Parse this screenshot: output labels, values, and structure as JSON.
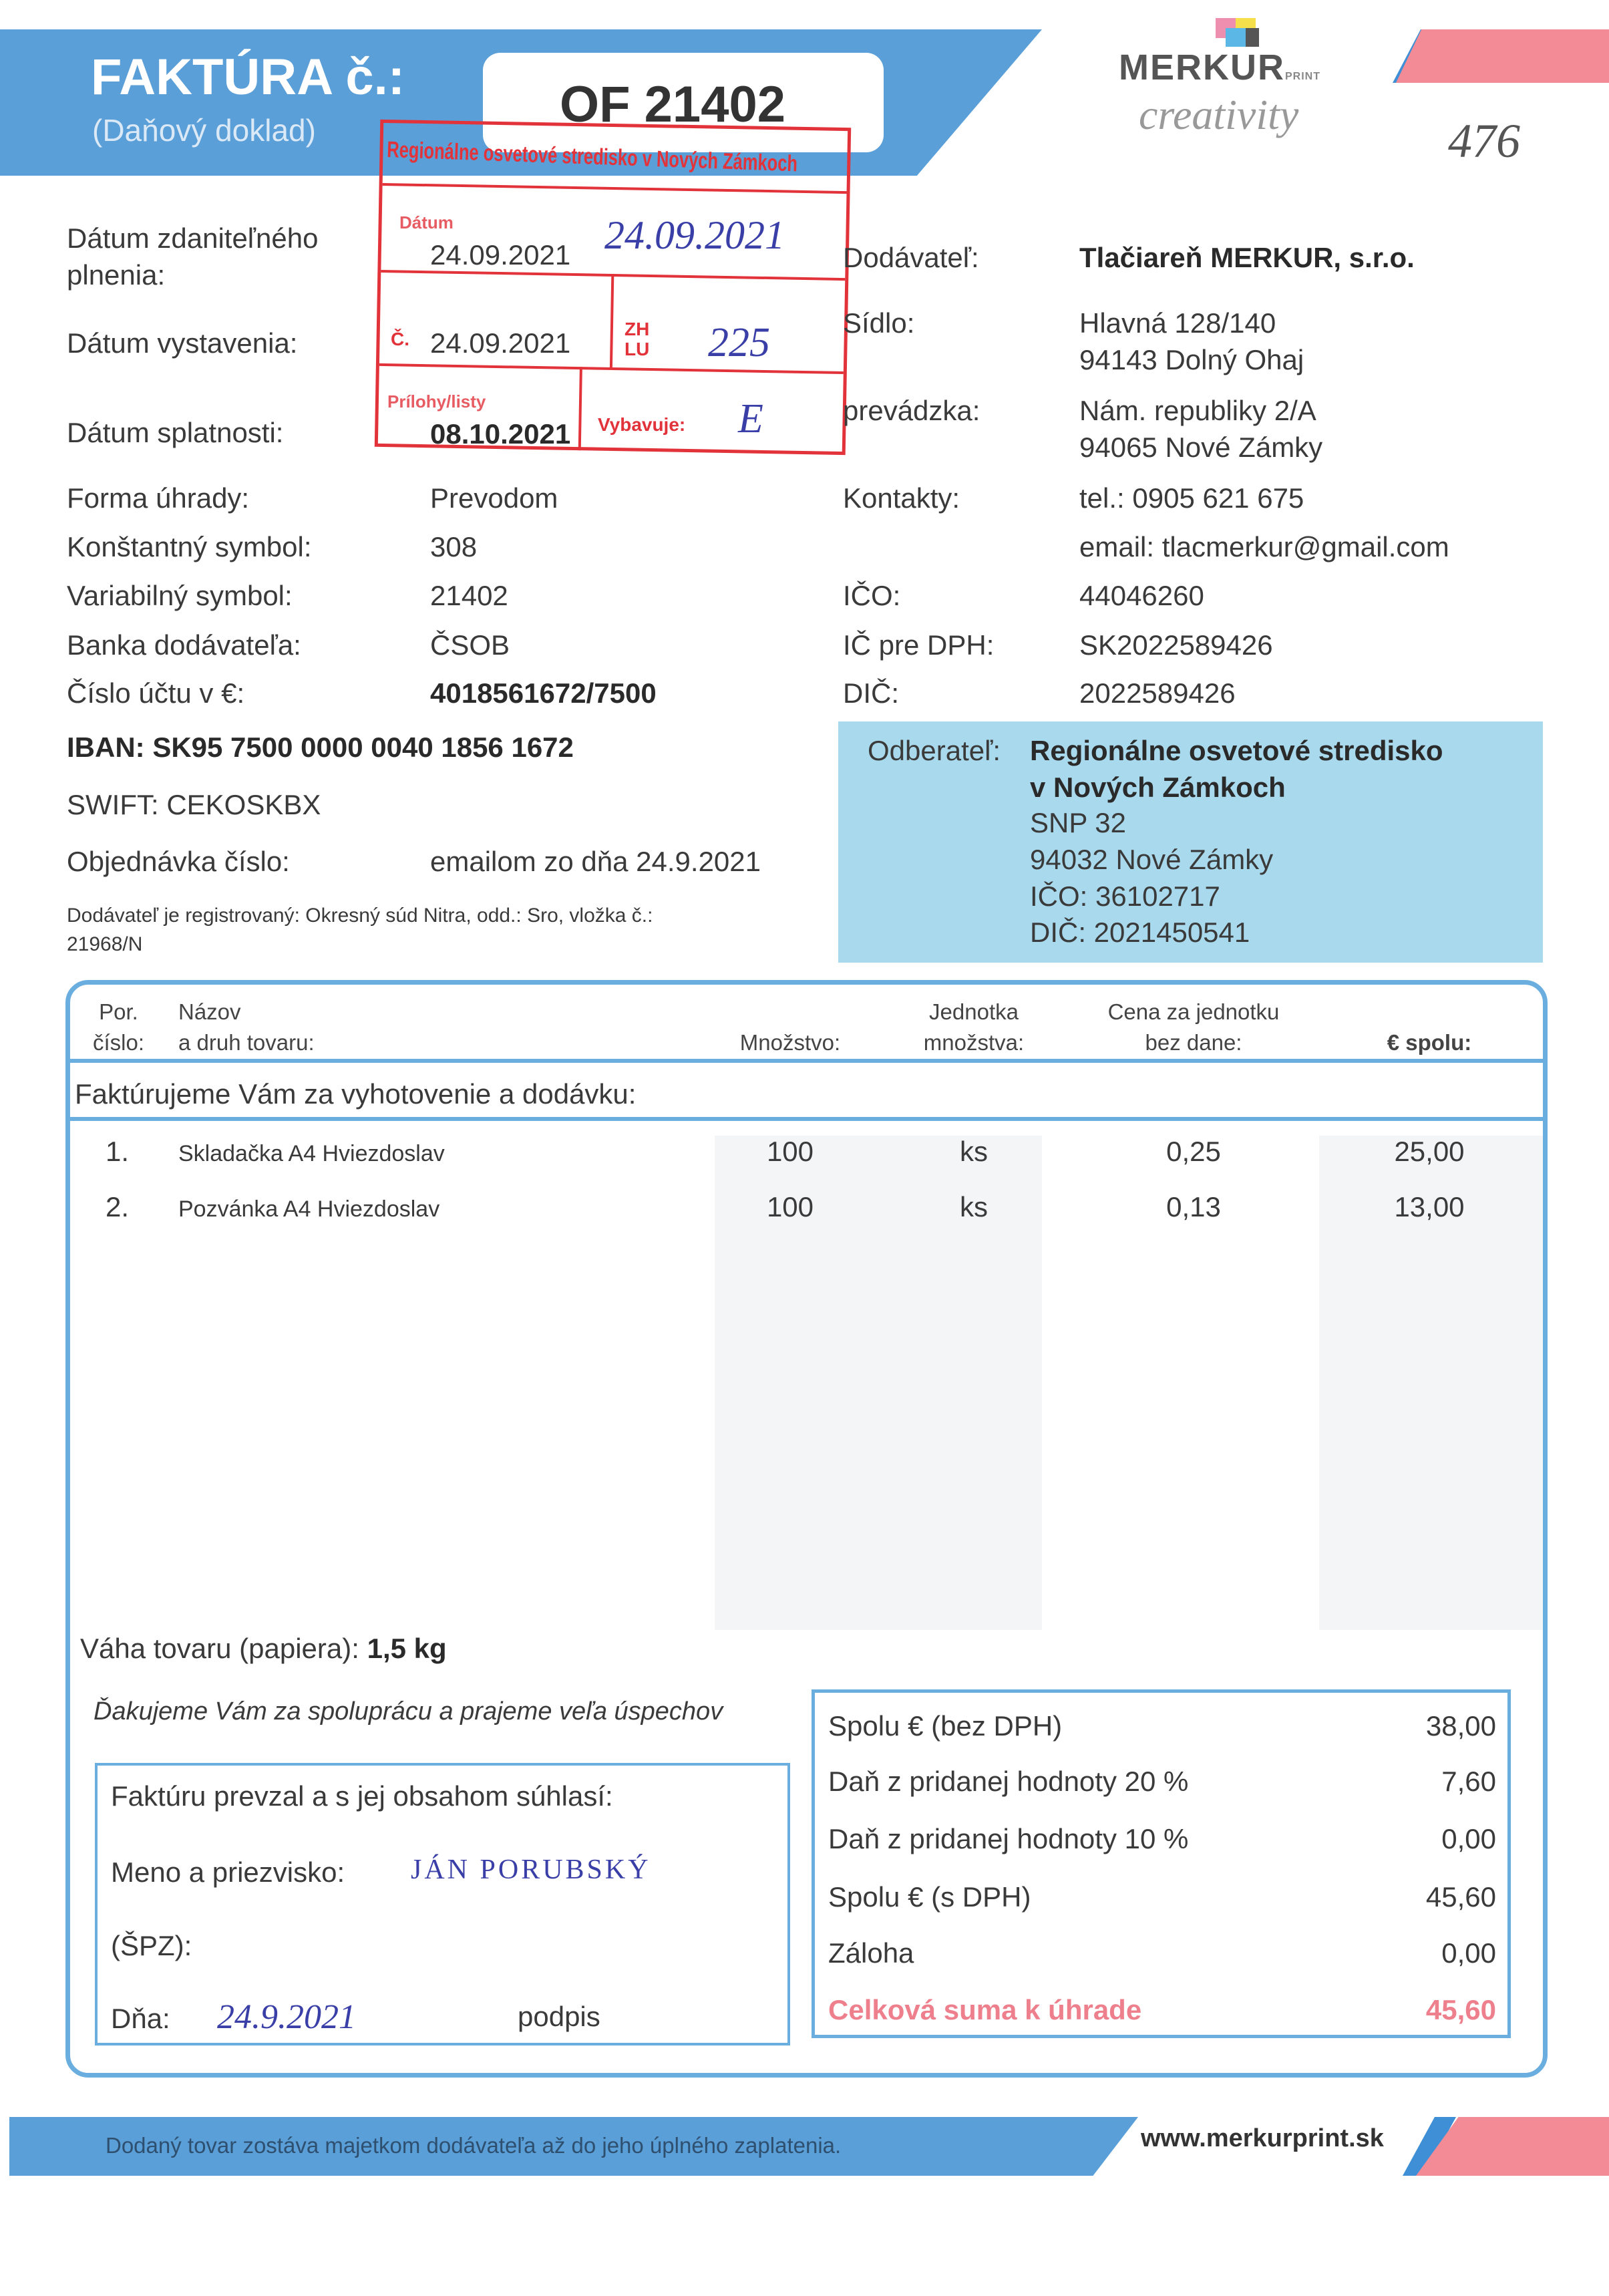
{
  "header": {
    "title": "FAKTÚRA č.:",
    "subtitle": "(Daňový doklad)",
    "invoice_number": "OF 21402",
    "logo_text": "MERKUR",
    "logo_sub": "PRINT",
    "tagline": "creativity",
    "handwritten_ref": "476",
    "accent_color": "#5a9fd8",
    "pink_color": "#f28b96"
  },
  "stamp": {
    "org": "Regionálne osvetové stredisko v Nových Zámkoch",
    "date_label": "Dátum",
    "date_value": "24.09.2021",
    "no_label": "Č.",
    "zh_label": "ZH\nLU",
    "zh_value": "225",
    "prilohy_label": "Prílohy/listy",
    "vybavuje_label": "Vybavuje:",
    "vybavuje_value": "E",
    "color": "#e2333b"
  },
  "left": {
    "datum_plnenia_label1": "Dátum zdaniteľného",
    "datum_plnenia_label2": "plnenia:",
    "datum_plnenia": "24.09.2021",
    "datum_vystavenia_label": "Dátum vystavenia:",
    "datum_vystavenia": "24.09.2021",
    "datum_splatnosti_label": "Dátum splatnosti:",
    "datum_splatnosti": "08.10.2021",
    "forma_label": "Forma úhrady:",
    "forma": "Prevodom",
    "ks_label": "Konštantný symbol:",
    "ks": "308",
    "vs_label": "Variabilný symbol:",
    "vs": "21402",
    "banka_label": "Banka dodávateľa:",
    "banka": "ČSOB",
    "ucet_label": "Číslo účtu v €:",
    "ucet": "4018561672/7500",
    "iban": "IBAN: SK95 7500 0000 0040 1856 1672",
    "swift": "SWIFT: CEKOSKBX",
    "objednavka_label": "Objednávka číslo:",
    "objednavka": "emailom zo dňa 24.9.2021",
    "registracia1": "Dodávateľ je registrovaný: Okresný súd Nitra, odd.: Sro, vložka č.:",
    "registracia2": "21968/N"
  },
  "supplier": {
    "dodavatel_label": "Dodávateľ:",
    "dodavatel": "Tlačiareň MERKUR, s.r.o.",
    "sidlo_label": "Sídlo:",
    "sidlo1": "Hlavná 128/140",
    "sidlo2": "94143 Dolný Ohaj",
    "prevadzka_label": "prevádzka:",
    "prevadzka1": "Nám. republiky 2/A",
    "prevadzka2": "94065 Nové Zámky",
    "kontakty_label": "Kontakty:",
    "tel": "tel.: 0905 621 675",
    "email": "email: tlacmerkur@gmail.com",
    "ico_label": "IČO:",
    "ico": "44046260",
    "icdph_label": "IČ pre DPH:",
    "icdph": "SK2022589426",
    "dic_label": "DIČ:",
    "dic": "2022589426"
  },
  "customer": {
    "label": "Odberateľ:",
    "name1": "Regionálne osvetové stredisko",
    "name2": "v Nových Zámkoch",
    "street": "SNP 32",
    "city": "94032 Nové Zámky",
    "ico": "IČO: 36102717",
    "dic": "DIČ: 2021450541",
    "bg_color": "#a9d9ec"
  },
  "table": {
    "headers": {
      "por": "Por.\nčíslo:",
      "nazov": "Názov\na druh tovaru:",
      "mnozstvo": "Množstvo:",
      "jednotka": "Jednotka\nmnožstva:",
      "cena": "Cena za jednotku\nbez dane:",
      "spolu": "€ spolu:"
    },
    "intro": "Faktúrujeme Vám za vyhotovenie a dodávku:",
    "rows": [
      {
        "no": "1.",
        "name": "Skladačka A4 Hviezdoslav",
        "qty": "100",
        "unit": "ks",
        "price": "0,25",
        "total": "25,00"
      },
      {
        "no": "2.",
        "name": "Pozvánka A4 Hviezdoslav",
        "qty": "100",
        "unit": "ks",
        "price": "0,13",
        "total": "13,00"
      }
    ],
    "weight_label": "Váha tovaru (papiera):",
    "weight": "1,5 kg",
    "thanks": "Ďakujeme Vám za spoluprácu a prajeme veľa úspechov"
  },
  "receipt": {
    "title": "Faktúru prevzal a s jej obsahom súhlasí:",
    "name_label": "Meno a priezvisko:",
    "name_value": "JÁN PORUBSKÝ",
    "spz_label": "(ŠPZ):",
    "date_label": "Dňa:",
    "date_value": "24.9.2021",
    "sign_label": "podpis"
  },
  "totals": [
    {
      "label": "Spolu € (bez DPH)",
      "value": "38,00"
    },
    {
      "label": "Daň z pridanej hodnoty 20 %",
      "value": "7,60"
    },
    {
      "label": "Daň z pridanej hodnoty 10 %",
      "value": "0,00"
    },
    {
      "label": "Spolu € (s DPH)",
      "value": "45,60"
    },
    {
      "label": "Záloha",
      "value": "0,00"
    },
    {
      "label": "Celková suma k úhrade",
      "value": "45,60"
    }
  ],
  "totals_highlight_color": "#ee7f8c",
  "footer": {
    "note": "Dodaný tovar zostáva majetkom dodávateľa až do jeho úplného zaplatenia.",
    "website": "www.merkurprint.sk"
  }
}
